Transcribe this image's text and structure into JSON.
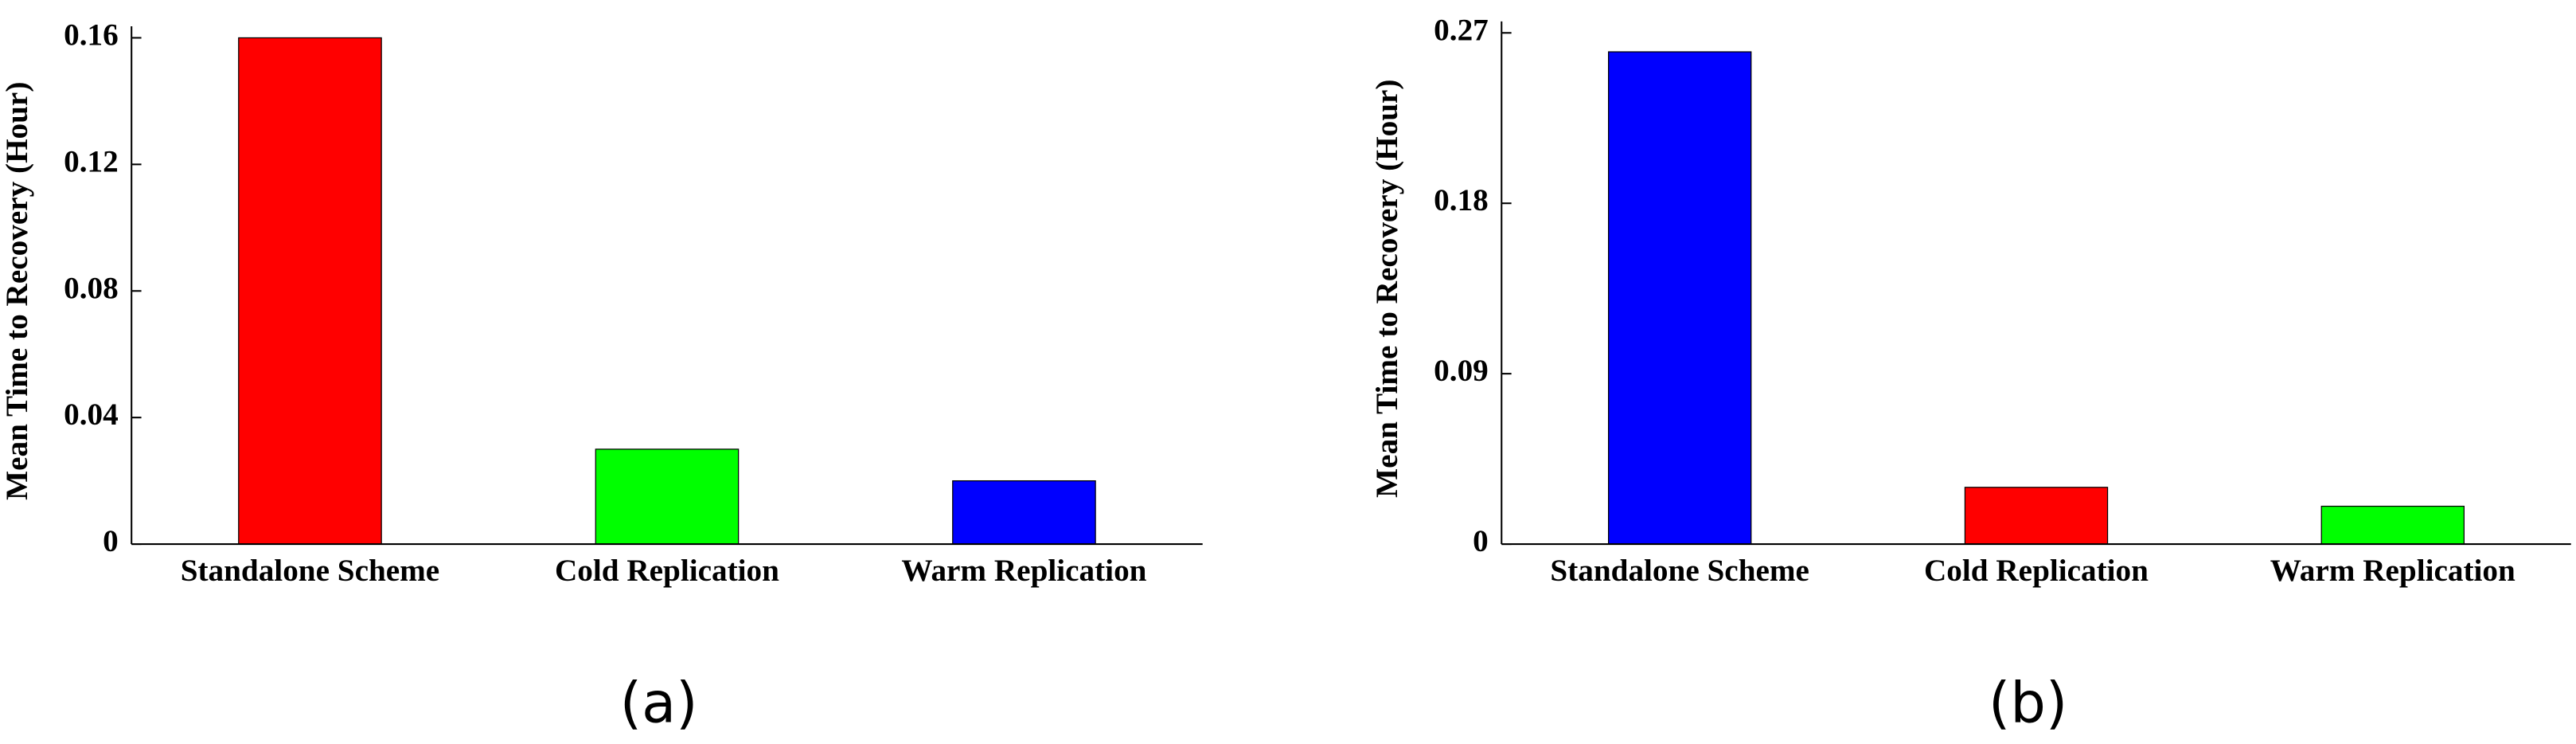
{
  "chart_data": [
    {
      "type": "bar",
      "ylabel": "Mean Time to Recovery (Hour)",
      "caption": "(a)",
      "categories": [
        "Standalone Scheme",
        "Cold Replication",
        "Warm Replication"
      ],
      "values": [
        0.16,
        0.03,
        0.02
      ],
      "colors": [
        "#ff0000",
        "#00ff00",
        "#0000ff"
      ],
      "ylim": [
        0,
        0.16
      ],
      "yticks": [
        0,
        0.04,
        0.08,
        0.12,
        0.16
      ],
      "grid": false
    },
    {
      "type": "bar",
      "ylabel": "Mean Time to Recovery (Hour)",
      "caption": "(b)",
      "categories": [
        "Standalone Scheme",
        "Cold Replication",
        "Warm Replication"
      ],
      "values": [
        0.26,
        0.03,
        0.02
      ],
      "colors": [
        "#0000ff",
        "#ff0000",
        "#00ff00"
      ],
      "ylim": [
        0,
        0.27
      ],
      "yticks": [
        0,
        0.09,
        0.18,
        0.27
      ],
      "grid": false
    }
  ]
}
